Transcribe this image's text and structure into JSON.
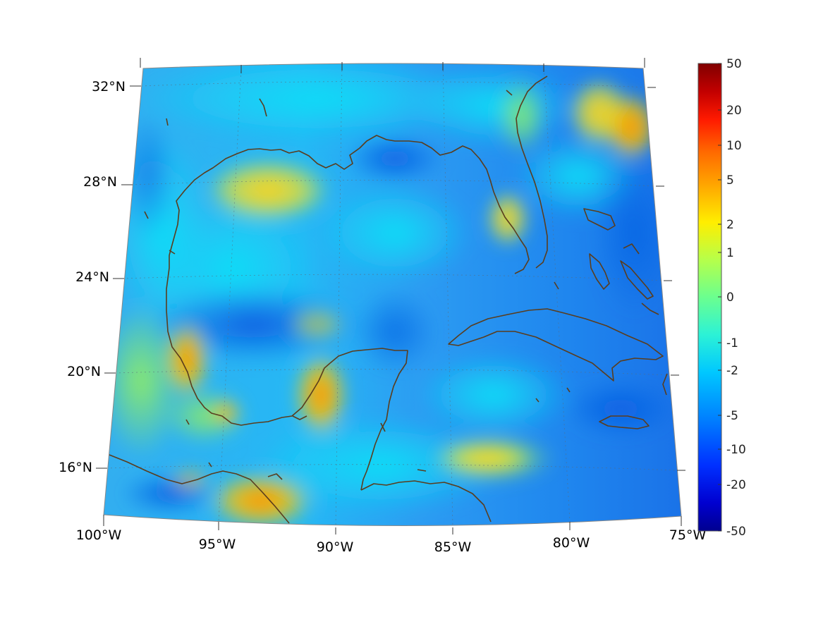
{
  "map": {
    "lat_labels": [
      {
        "value": 32,
        "text": "32°N"
      },
      {
        "value": 28,
        "text": "28°N"
      },
      {
        "value": 24,
        "text": "24°N"
      },
      {
        "value": 20,
        "text": "20°N"
      },
      {
        "value": 16,
        "text": "16°N"
      }
    ],
    "lon_labels": [
      {
        "value": -100,
        "text": "100°W"
      },
      {
        "value": -95,
        "text": "95°W"
      },
      {
        "value": -90,
        "text": "90°W"
      },
      {
        "value": -85,
        "text": "85°W"
      },
      {
        "value": -80,
        "text": "80°W"
      },
      {
        "value": -75,
        "text": "75°W"
      }
    ],
    "extent": {
      "lon_min": -100,
      "lon_max": -75,
      "lat_min": 14,
      "lat_max": 33
    },
    "coastline_color": "#5a3d1e",
    "grid": "dotted"
  },
  "colorbar": {
    "colormap": "jet",
    "ticks": [
      "50",
      "20",
      "10",
      "5",
      "2",
      "1",
      "0",
      "-1",
      "-2",
      "-5",
      "-10",
      "-20",
      "-50"
    ],
    "top_color": "#800000",
    "bottom_color": "#00008f"
  }
}
